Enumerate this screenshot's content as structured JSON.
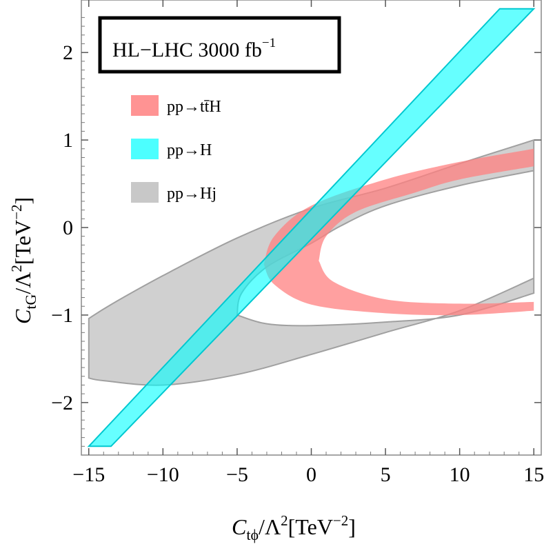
{
  "chart_data": {
    "type": "area",
    "title": "",
    "annotation": {
      "text": "HL−LHC 3000 fb",
      "superscript": "−1"
    },
    "xlabel": {
      "var": "C",
      "sub": "tϕ",
      "rest": "/Λ",
      "sq": "2",
      "unit_open": "[TeV",
      "unit_exp": "−2",
      "unit_close": "]"
    },
    "ylabel": {
      "var": "C",
      "sub": "tG",
      "rest": "/Λ",
      "sq": "2",
      "unit_open": "[TeV",
      "unit_exp": "−2",
      "unit_close": "]"
    },
    "xlim": [
      -15.5,
      15.5
    ],
    "ylim": [
      -2.6,
      2.6
    ],
    "xticks": [
      -15,
      -10,
      -5,
      0,
      5,
      10,
      15
    ],
    "xtick_labels": [
      "−15",
      "−10",
      "−5",
      "0",
      "5",
      "10",
      "15"
    ],
    "yticks": [
      -2,
      -1,
      0,
      1,
      2
    ],
    "ytick_labels": [
      "−2",
      "−1",
      "0",
      "1",
      "2"
    ],
    "grid": false,
    "legend_position": "upper-left",
    "series": [
      {
        "name": "pp→tt̄H",
        "color": "#ff8080",
        "fill_opacity": 0.75,
        "shape": "parabolic band opening right",
        "vertex_outer": [
          -3.2,
          -0.42
        ],
        "vertex_inner": [
          0.5,
          -0.38
        ],
        "outer_upper": [
          [
            -3.2,
            -0.42
          ],
          [
            -2.5,
            -0.1
          ],
          [
            0,
            0.25
          ],
          [
            5,
            0.55
          ],
          [
            10,
            0.75
          ],
          [
            15,
            0.9
          ]
        ],
        "inner_upper": [
          [
            0.5,
            -0.38
          ],
          [
            1,
            -0.1
          ],
          [
            3,
            0.18
          ],
          [
            7,
            0.4
          ],
          [
            10,
            0.55
          ],
          [
            15,
            0.7
          ]
        ],
        "inner_lower": [
          [
            0.5,
            -0.38
          ],
          [
            1.5,
            -0.62
          ],
          [
            5,
            -0.82
          ],
          [
            10,
            -0.87
          ],
          [
            15,
            -0.85
          ]
        ],
        "outer_lower": [
          [
            -3.2,
            -0.42
          ],
          [
            -2.5,
            -0.65
          ],
          [
            0,
            -0.88
          ],
          [
            5,
            -0.98
          ],
          [
            10,
            -1.0
          ],
          [
            15,
            -0.95
          ]
        ]
      },
      {
        "name": "pp→H",
        "color": "#00ffff",
        "fill_opacity": 0.6,
        "shape": "straight diagonal band",
        "left_edge": [
          [
            -15,
            -2.5
          ],
          [
            12.7,
            2.5
          ]
        ],
        "right_edge": [
          [
            -13.5,
            -2.5
          ],
          [
            15,
            2.5
          ]
        ]
      },
      {
        "name": "pp→Hj",
        "color": "#b0b0b0",
        "fill_opacity": 0.6,
        "shape": "sideways parabolic band, left end clipped at x = -15",
        "outer_upper": [
          [
            -15,
            -1.04
          ],
          [
            -13.5,
            -0.88
          ],
          [
            -10,
            -0.55
          ],
          [
            -5,
            -0.12
          ],
          [
            0,
            0.22
          ],
          [
            5,
            0.45
          ],
          [
            10,
            0.73
          ],
          [
            15,
            1.0
          ]
        ],
        "outer_lower": [
          [
            -15,
            -1.72
          ],
          [
            -14,
            -1.75
          ],
          [
            -10,
            -1.8
          ],
          [
            -5,
            -1.68
          ],
          [
            0,
            -1.45
          ],
          [
            5,
            -1.2
          ],
          [
            10,
            -0.95
          ],
          [
            15,
            -0.58
          ]
        ],
        "inner_upper": [
          [
            -5,
            -1.0
          ],
          [
            -4.7,
            -0.75
          ],
          [
            -3,
            -0.45
          ],
          [
            0,
            -0.18
          ],
          [
            2,
            0.02
          ],
          [
            5,
            0.25
          ],
          [
            10,
            0.48
          ],
          [
            15,
            0.65
          ]
        ],
        "inner_lower": [
          [
            -5,
            -1.0
          ],
          [
            -3,
            -1.1
          ],
          [
            0,
            -1.12
          ],
          [
            5,
            -1.08
          ],
          [
            10,
            -1.0
          ],
          [
            15,
            -0.75
          ]
        ]
      }
    ]
  }
}
